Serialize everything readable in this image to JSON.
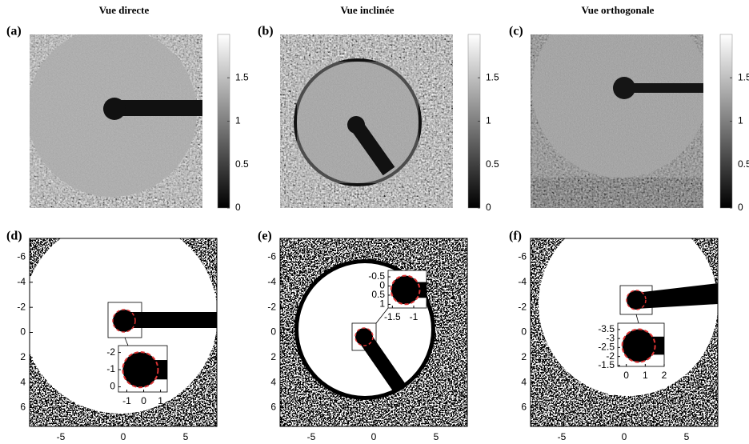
{
  "titles": [
    "Vue directe",
    "Vue inclinée",
    "Vue orthogonale"
  ],
  "panel_labels": [
    "(a)",
    "(b)",
    "(c)",
    "(d)",
    "(e)",
    "(f)"
  ],
  "colorbar": {
    "lim": [
      0,
      2
    ],
    "ticks": [
      0,
      0.5,
      1,
      1.5
    ]
  },
  "axes": {
    "xlim": [
      -7.5,
      7.5
    ],
    "ylim": [
      -7.5,
      7.5
    ],
    "xticks": [
      -5,
      0,
      5
    ],
    "yticks": [
      -6,
      -4,
      -2,
      0,
      2,
      4,
      6
    ]
  },
  "insets": [
    {
      "xlim": [
        -1.5,
        1.4
      ],
      "ylim": [
        -2.4,
        0.3
      ],
      "xticks": [
        -1,
        0,
        1
      ],
      "yticks": [
        -2,
        -1,
        0
      ]
    },
    {
      "xlim": [
        -1.6,
        -0.7
      ],
      "ylim": [
        -0.85,
        1.2
      ],
      "xticks": [
        -1.5,
        -1
      ],
      "yticks": [
        -0.5,
        0,
        0.5,
        1
      ]
    },
    {
      "xlim": [
        -0.45,
        2.0
      ],
      "ylim": [
        -3.85,
        -1.45
      ],
      "xticks": [
        0,
        1,
        2
      ],
      "yticks": [
        -3.5,
        -3,
        -2.5,
        -2,
        -1.5
      ]
    }
  ]
}
